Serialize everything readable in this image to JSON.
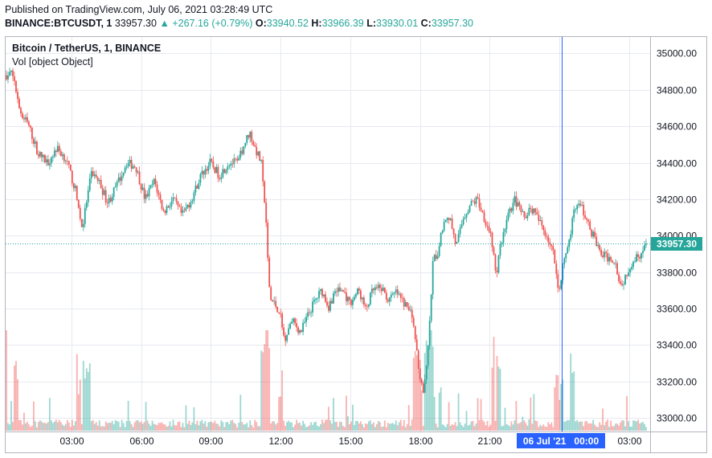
{
  "header": {
    "published": "Published on TradingView.com, July 06, 2021 03:28:49 UTC",
    "symbol": "BINANCE:BTCUSDT, 1",
    "last": "33957.30",
    "change": "+267.16 (+0.79%)",
    "o_label": "O:",
    "o_value": "33940.52",
    "h_label": "H:",
    "h_value": "33966.39",
    "l_label": "L:",
    "l_value": "33930.01",
    "c_label": "C:",
    "c_value": "33957.30"
  },
  "legend": {
    "title": "Bitcoin / TetherUS, 1, BINANCE",
    "volume": "Vol [object Object]"
  },
  "colors": {
    "up": "#26a69a",
    "down": "#ef5350",
    "crosshair_label": "#2962ff",
    "price_line": "#26a69a",
    "grid": "#e6e9ef"
  },
  "chart_data": {
    "type": "candlestick",
    "timeframe": "1 minute",
    "ylim": [
      32930,
      35090
    ],
    "y_ticks": [
      "35000.00",
      "34800.00",
      "34600.00",
      "34400.00",
      "34200.00",
      "34000.00",
      "33800.00",
      "33600.00",
      "33400.00",
      "33200.00",
      "33000.00"
    ],
    "x_ticks": [
      "03:00",
      "06:00",
      "09:00",
      "12:00",
      "15:00",
      "18:00",
      "21:00",
      "00:00",
      "03:00"
    ],
    "crosshair_label": "06 Jul '21   00:00",
    "last_price_label": "33957.30",
    "grid": true,
    "price_path": [
      [
        0.0,
        34880
      ],
      [
        0.3,
        34900
      ],
      [
        0.6,
        34690
      ],
      [
        1.0,
        34600
      ],
      [
        1.4,
        34450
      ],
      [
        1.8,
        34400
      ],
      [
        2.2,
        34480
      ],
      [
        2.6,
        34420
      ],
      [
        3.0,
        34250
      ],
      [
        3.3,
        34040
      ],
      [
        3.7,
        34350
      ],
      [
        4.0,
        34300
      ],
      [
        4.4,
        34180
      ],
      [
        4.8,
        34280
      ],
      [
        5.2,
        34400
      ],
      [
        5.6,
        34380
      ],
      [
        6.0,
        34200
      ],
      [
        6.4,
        34300
      ],
      [
        6.8,
        34130
      ],
      [
        7.2,
        34200
      ],
      [
        7.6,
        34110
      ],
      [
        8.0,
        34200
      ],
      [
        8.4,
        34330
      ],
      [
        8.8,
        34400
      ],
      [
        9.2,
        34330
      ],
      [
        9.6,
        34400
      ],
      [
        10.0,
        34400
      ],
      [
        10.2,
        34480
      ],
      [
        10.5,
        34570
      ],
      [
        10.7,
        34490
      ],
      [
        11.0,
        34400
      ],
      [
        11.2,
        34100
      ],
      [
        11.3,
        33800
      ],
      [
        11.4,
        33650
      ],
      [
        11.6,
        33620
      ],
      [
        11.8,
        33580
      ],
      [
        12.0,
        33430
      ],
      [
        12.3,
        33540
      ],
      [
        12.7,
        33470
      ],
      [
        13.0,
        33560
      ],
      [
        13.3,
        33640
      ],
      [
        13.6,
        33700
      ],
      [
        13.9,
        33610
      ],
      [
        14.2,
        33700
      ],
      [
        14.5,
        33700
      ],
      [
        14.8,
        33630
      ],
      [
        15.2,
        33700
      ],
      [
        15.5,
        33590
      ],
      [
        15.8,
        33700
      ],
      [
        16.2,
        33710
      ],
      [
        16.5,
        33640
      ],
      [
        16.8,
        33690
      ],
      [
        17.2,
        33620
      ],
      [
        17.5,
        33570
      ],
      [
        17.8,
        33260
      ],
      [
        18.0,
        33130
      ],
      [
        18.2,
        33400
      ],
      [
        18.4,
        33870
      ],
      [
        18.6,
        33900
      ],
      [
        18.8,
        34050
      ],
      [
        19.1,
        34110
      ],
      [
        19.4,
        33940
      ],
      [
        19.7,
        34100
      ],
      [
        20.0,
        34170
      ],
      [
        20.3,
        34200
      ],
      [
        20.6,
        34100
      ],
      [
        20.9,
        34000
      ],
      [
        21.1,
        33770
      ],
      [
        21.3,
        33950
      ],
      [
        21.6,
        34100
      ],
      [
        21.9,
        34200
      ],
      [
        22.3,
        34100
      ],
      [
        22.6,
        34160
      ],
      [
        23.0,
        34070
      ],
      [
        23.3,
        34000
      ],
      [
        23.6,
        33890
      ],
      [
        23.8,
        33680
      ],
      [
        24.0,
        33850
      ],
      [
        24.3,
        34000
      ],
      [
        24.5,
        34170
      ],
      [
        24.8,
        34150
      ],
      [
        25.1,
        34050
      ],
      [
        25.3,
        34000
      ],
      [
        25.6,
        33900
      ],
      [
        25.9,
        33880
      ],
      [
        26.2,
        33870
      ],
      [
        26.5,
        33720
      ],
      [
        26.8,
        33820
      ],
      [
        27.1,
        33880
      ],
      [
        27.4,
        33910
      ],
      [
        27.6,
        33960
      ]
    ],
    "span_hours": 27.6,
    "x_start_time": "00:10"
  }
}
